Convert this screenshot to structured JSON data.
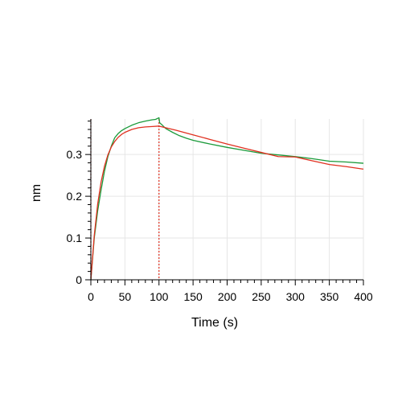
{
  "chart_data": {
    "type": "line",
    "xlabel": "Time (s)",
    "ylabel": "nm",
    "xlim": [
      0,
      400
    ],
    "ylim": [
      0,
      0.385
    ],
    "x_ticks": [
      0,
      50,
      100,
      150,
      200,
      250,
      300,
      350,
      400
    ],
    "x_tick_labels": [
      "0",
      "50",
      "100",
      "150",
      "200",
      "250",
      "300",
      "350",
      "400"
    ],
    "y_ticks": [
      0,
      0.1,
      0.2,
      0.3
    ],
    "y_tick_labels": [
      "0",
      "0.1",
      "0.2",
      "0.3"
    ],
    "grid": true,
    "vertical_markers": [
      0,
      100
    ],
    "series": [
      {
        "color": "#1a9a3a",
        "style": "measured",
        "x": [
          0,
          5,
          10,
          15,
          20,
          25,
          30,
          35,
          40,
          45,
          50,
          60,
          70,
          80,
          90,
          95,
          100,
          101,
          105,
          110,
          120,
          130,
          140,
          150,
          175,
          200,
          225,
          250,
          275,
          300,
          325,
          350,
          375,
          400
        ],
        "y": [
          0,
          0.1,
          0.165,
          0.215,
          0.26,
          0.295,
          0.32,
          0.34,
          0.35,
          0.357,
          0.362,
          0.37,
          0.376,
          0.38,
          0.383,
          0.384,
          0.388,
          0.376,
          0.37,
          0.362,
          0.353,
          0.345,
          0.339,
          0.334,
          0.325,
          0.317,
          0.31,
          0.303,
          0.299,
          0.295,
          0.29,
          0.284,
          0.282,
          0.279
        ]
      },
      {
        "color": "#e03020",
        "style": "fit",
        "x": [
          0,
          5,
          10,
          15,
          20,
          25,
          30,
          35,
          40,
          45,
          50,
          60,
          70,
          80,
          90,
          100,
          125,
          150,
          175,
          200,
          225,
          250,
          275,
          300,
          325,
          350,
          375,
          400
        ],
        "y": [
          0,
          0.106,
          0.181,
          0.234,
          0.272,
          0.299,
          0.318,
          0.331,
          0.341,
          0.348,
          0.353,
          0.36,
          0.364,
          0.366,
          0.367,
          0.368,
          0.358,
          0.347,
          0.336,
          0.325,
          0.315,
          0.305,
          0.295,
          0.294,
          0.285,
          0.276,
          0.271,
          0.265
        ]
      }
    ]
  }
}
